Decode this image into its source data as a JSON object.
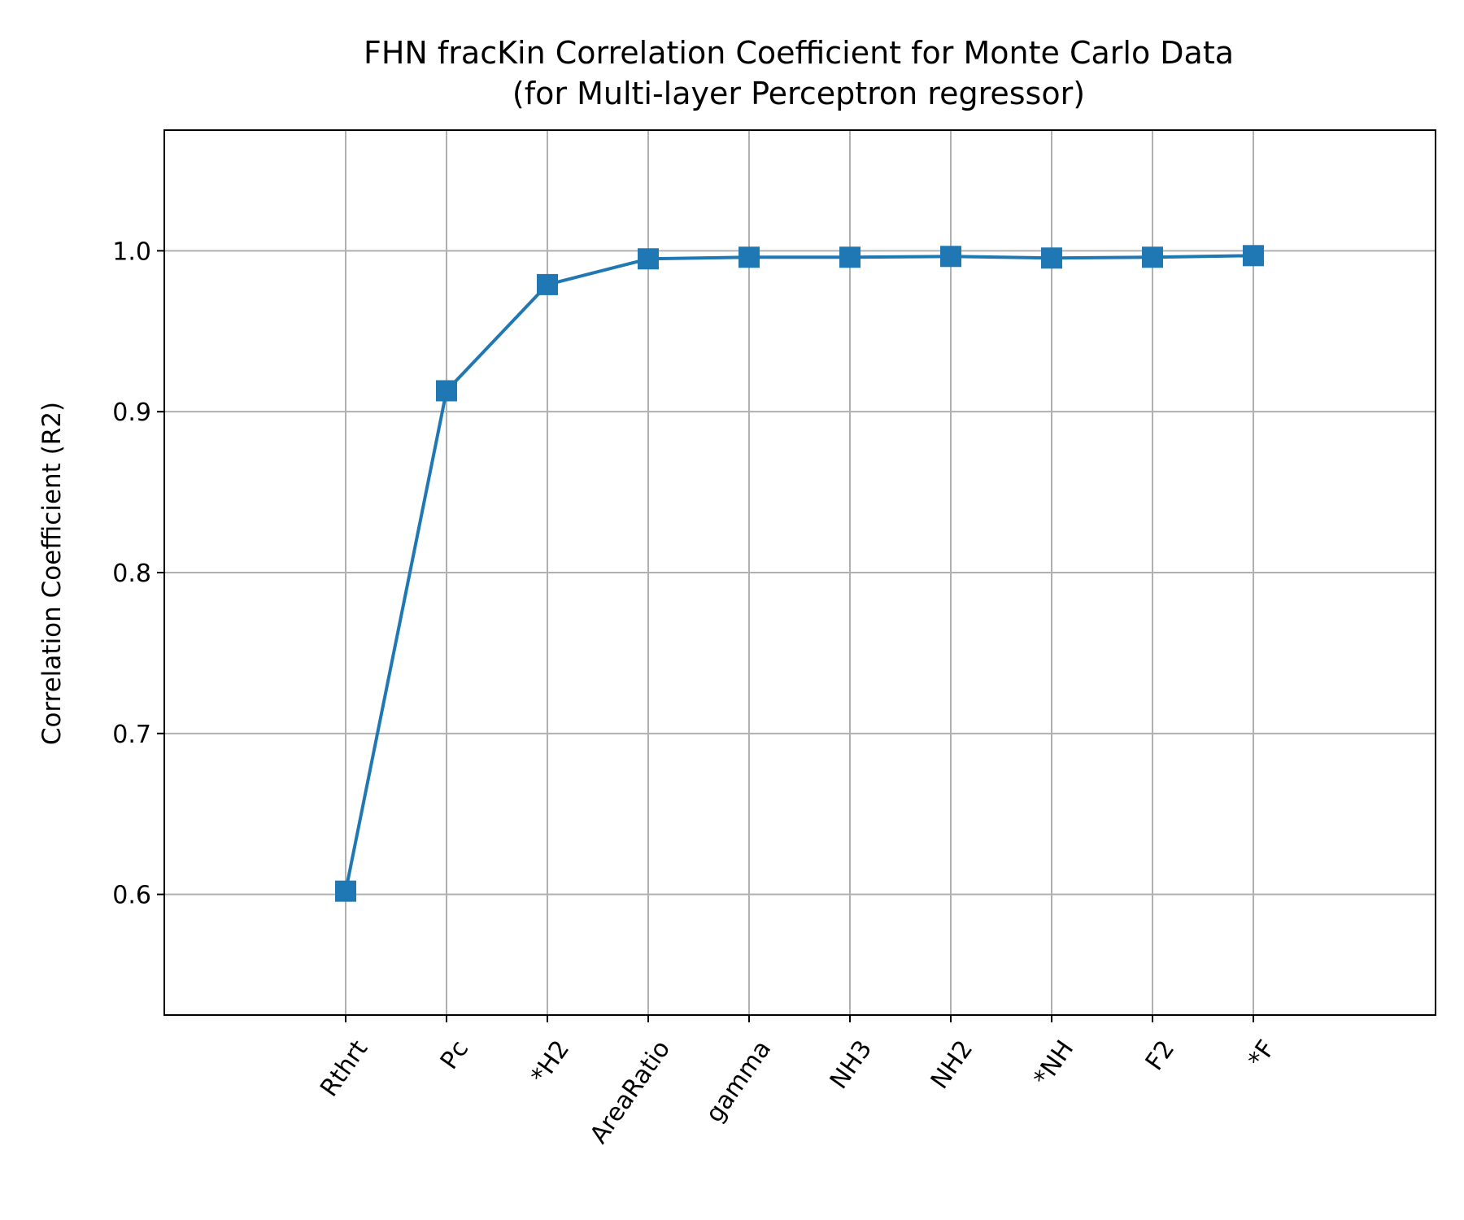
{
  "chart_data": {
    "type": "line",
    "title": "FHN fracKin Correlation Coefficient for Monte Carlo Data",
    "subtitle": "(for Multi-layer Perceptron regressor)",
    "xlabel": "",
    "ylabel": "Correlation Coefficient (R2)",
    "categories": [
      "Rthrt",
      "Pc",
      "*H2",
      "AreaRatio",
      "gamma",
      "NH3",
      "NH2",
      "*NH",
      "F2",
      "*F"
    ],
    "series": [
      {
        "values": [
          0.602,
          0.913,
          0.979,
          0.995,
          0.996,
          0.996,
          0.9965,
          0.9955,
          0.996,
          0.997
        ],
        "color": "#1f77b4",
        "marker": "square"
      }
    ],
    "ylim": [
      0.525,
      1.075
    ],
    "yticks": [
      0.6,
      0.7,
      0.8,
      0.9,
      1.0
    ],
    "ytick_labels": [
      "0.6",
      "0.7",
      "0.8",
      "0.9",
      "1.0"
    ],
    "grid": true,
    "x_tick_rotation_deg": -55
  }
}
